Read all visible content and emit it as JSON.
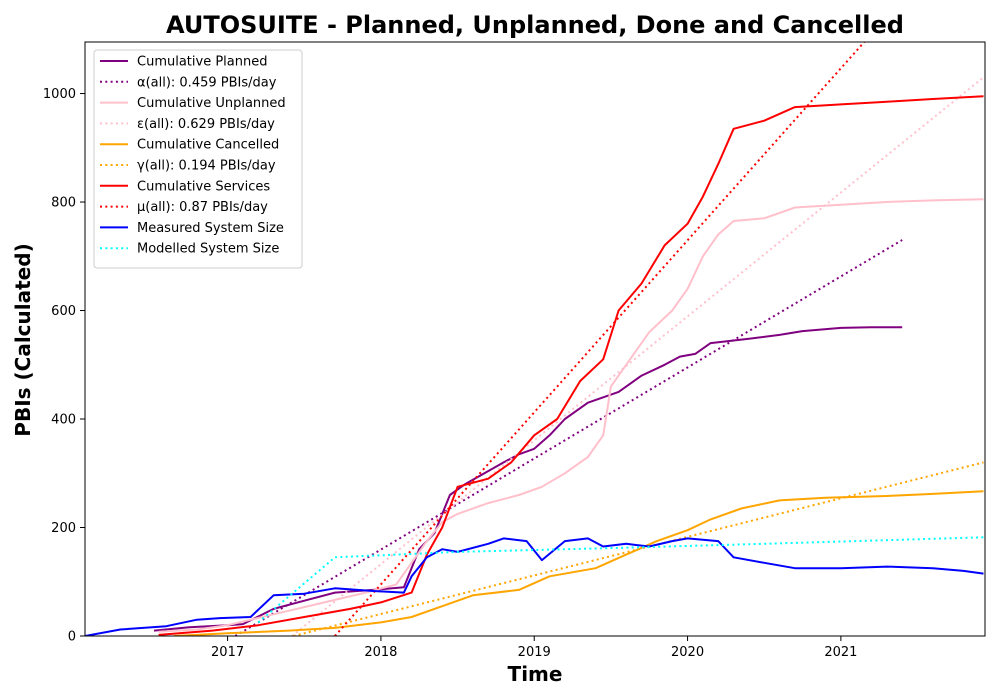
{
  "chart_data": {
    "type": "line",
    "title": "AUTOSUITE - Planned, Unplanned, Done  and Cancelled",
    "xlabel": "Time",
    "ylabel": "PBIs (Calculated)",
    "xlim": [
      2016.07,
      2021.94
    ],
    "ylim": [
      0,
      1095
    ],
    "x_ticks": [
      2017,
      2018,
      2019,
      2020,
      2021
    ],
    "y_ticks": [
      0,
      200,
      400,
      600,
      800,
      1000
    ],
    "grid": false,
    "legend_position": "top-left",
    "series": [
      {
        "name": "Cumulative Planned",
        "color": "#800080",
        "style": "solid",
        "x": [
          2016.52,
          2016.75,
          2017.0,
          2017.1,
          2017.3,
          2017.5,
          2017.7,
          2017.95,
          2018.15,
          2018.25,
          2018.35,
          2018.45,
          2018.55,
          2018.8,
          2018.9,
          2019.0,
          2019.1,
          2019.2,
          2019.35,
          2019.55,
          2019.7,
          2019.85,
          2019.95,
          2020.05,
          2020.15,
          2020.4,
          2020.6,
          2020.75,
          2021.0,
          2021.2,
          2021.4
        ],
        "y": [
          10,
          16,
          20,
          22,
          50,
          65,
          80,
          85,
          90,
          160,
          190,
          260,
          280,
          320,
          335,
          345,
          370,
          400,
          430,
          450,
          480,
          500,
          515,
          520,
          540,
          548,
          555,
          562,
          568,
          569,
          569
        ]
      },
      {
        "name": "α(all): 0.459 PBIs/day",
        "color": "#800080",
        "style": "dotted",
        "x": [
          2017.05,
          2021.4
        ],
        "y": [
          0,
          730
        ]
      },
      {
        "name": "Cumulative Unplanned",
        "color": "#ffc0cb",
        "style": "solid",
        "x": [
          2016.55,
          2016.8,
          2017.0,
          2017.3,
          2017.6,
          2017.9,
          2018.1,
          2018.3,
          2018.4,
          2018.5,
          2018.7,
          2018.9,
          2019.05,
          2019.2,
          2019.35,
          2019.45,
          2019.5,
          2019.6,
          2019.75,
          2019.9,
          2020.0,
          2020.1,
          2020.2,
          2020.3,
          2020.5,
          2020.7,
          2021.0,
          2021.3,
          2021.6,
          2021.93
        ],
        "y": [
          8,
          12,
          20,
          40,
          60,
          80,
          95,
          175,
          210,
          225,
          245,
          260,
          275,
          300,
          330,
          370,
          460,
          500,
          560,
          600,
          640,
          700,
          740,
          765,
          770,
          790,
          795,
          800,
          803,
          805
        ]
      },
      {
        "name": "ε(all): 0.629 PBIs/day",
        "color": "#ffc0cb",
        "style": "dotted",
        "x": [
          2017.42,
          2021.93
        ],
        "y": [
          0,
          1030
        ]
      },
      {
        "name": "Cumulative Cancelled",
        "color": "#ffa500",
        "style": "solid",
        "x": [
          2016.65,
          2017.0,
          2017.4,
          2017.7,
          2018.0,
          2018.2,
          2018.4,
          2018.6,
          2018.9,
          2019.1,
          2019.4,
          2019.6,
          2019.8,
          2020.0,
          2020.15,
          2020.35,
          2020.6,
          2020.9,
          2021.3,
          2021.6,
          2021.93
        ],
        "y": [
          0,
          5,
          10,
          15,
          25,
          35,
          55,
          75,
          85,
          110,
          125,
          150,
          175,
          195,
          215,
          235,
          250,
          255,
          258,
          262,
          267
        ]
      },
      {
        "name": "γ(all): 0.194 PBIs/day",
        "color": "#ffa500",
        "style": "dotted",
        "x": [
          2017.43,
          2021.93
        ],
        "y": [
          0,
          320
        ]
      },
      {
        "name": "Cumulative Services",
        "color": "#ff0000",
        "style": "solid",
        "x": [
          2016.55,
          2016.9,
          2017.2,
          2017.5,
          2017.8,
          2018.0,
          2018.2,
          2018.3,
          2018.4,
          2018.5,
          2018.7,
          2018.85,
          2019.0,
          2019.15,
          2019.3,
          2019.45,
          2019.55,
          2019.7,
          2019.85,
          2020.0,
          2020.1,
          2020.2,
          2020.3,
          2020.5,
          2020.7,
          2021.0,
          2021.3,
          2021.6,
          2021.93
        ],
        "y": [
          2,
          10,
          20,
          35,
          50,
          62,
          80,
          150,
          200,
          275,
          290,
          320,
          370,
          400,
          470,
          510,
          600,
          650,
          720,
          760,
          810,
          870,
          935,
          950,
          975,
          980,
          985,
          990,
          995
        ]
      },
      {
        "name": "μ(all): 0.87 PBIs/day",
        "color": "#ff0000",
        "style": "dotted",
        "x": [
          2017.7,
          2021.2
        ],
        "y": [
          0,
          1110
        ]
      },
      {
        "name": "Measured System Size",
        "color": "#0000ff",
        "style": "solid",
        "x": [
          2016.07,
          2016.3,
          2016.6,
          2016.8,
          2016.95,
          2017.15,
          2017.3,
          2017.5,
          2017.7,
          2017.95,
          2018.15,
          2018.2,
          2018.3,
          2018.4,
          2018.5,
          2018.7,
          2018.8,
          2018.95,
          2019.05,
          2019.2,
          2019.35,
          2019.45,
          2019.6,
          2019.75,
          2019.9,
          2020.0,
          2020.2,
          2020.3,
          2020.5,
          2020.7,
          2021.0,
          2021.3,
          2021.6,
          2021.8,
          2021.93
        ],
        "y": [
          0,
          12,
          18,
          30,
          33,
          35,
          75,
          78,
          88,
          83,
          80,
          110,
          145,
          160,
          155,
          170,
          180,
          175,
          140,
          175,
          180,
          165,
          170,
          165,
          175,
          180,
          175,
          145,
          135,
          125,
          125,
          128,
          125,
          120,
          115
        ]
      },
      {
        "name": "Modelled System Size",
        "color": "#00ffff",
        "style": "dotted",
        "x": [
          2017.2,
          2017.7,
          2018.5,
          2019.5,
          2020.5,
          2021.93
        ],
        "y": [
          25,
          145,
          155,
          162,
          170,
          182
        ]
      }
    ]
  }
}
